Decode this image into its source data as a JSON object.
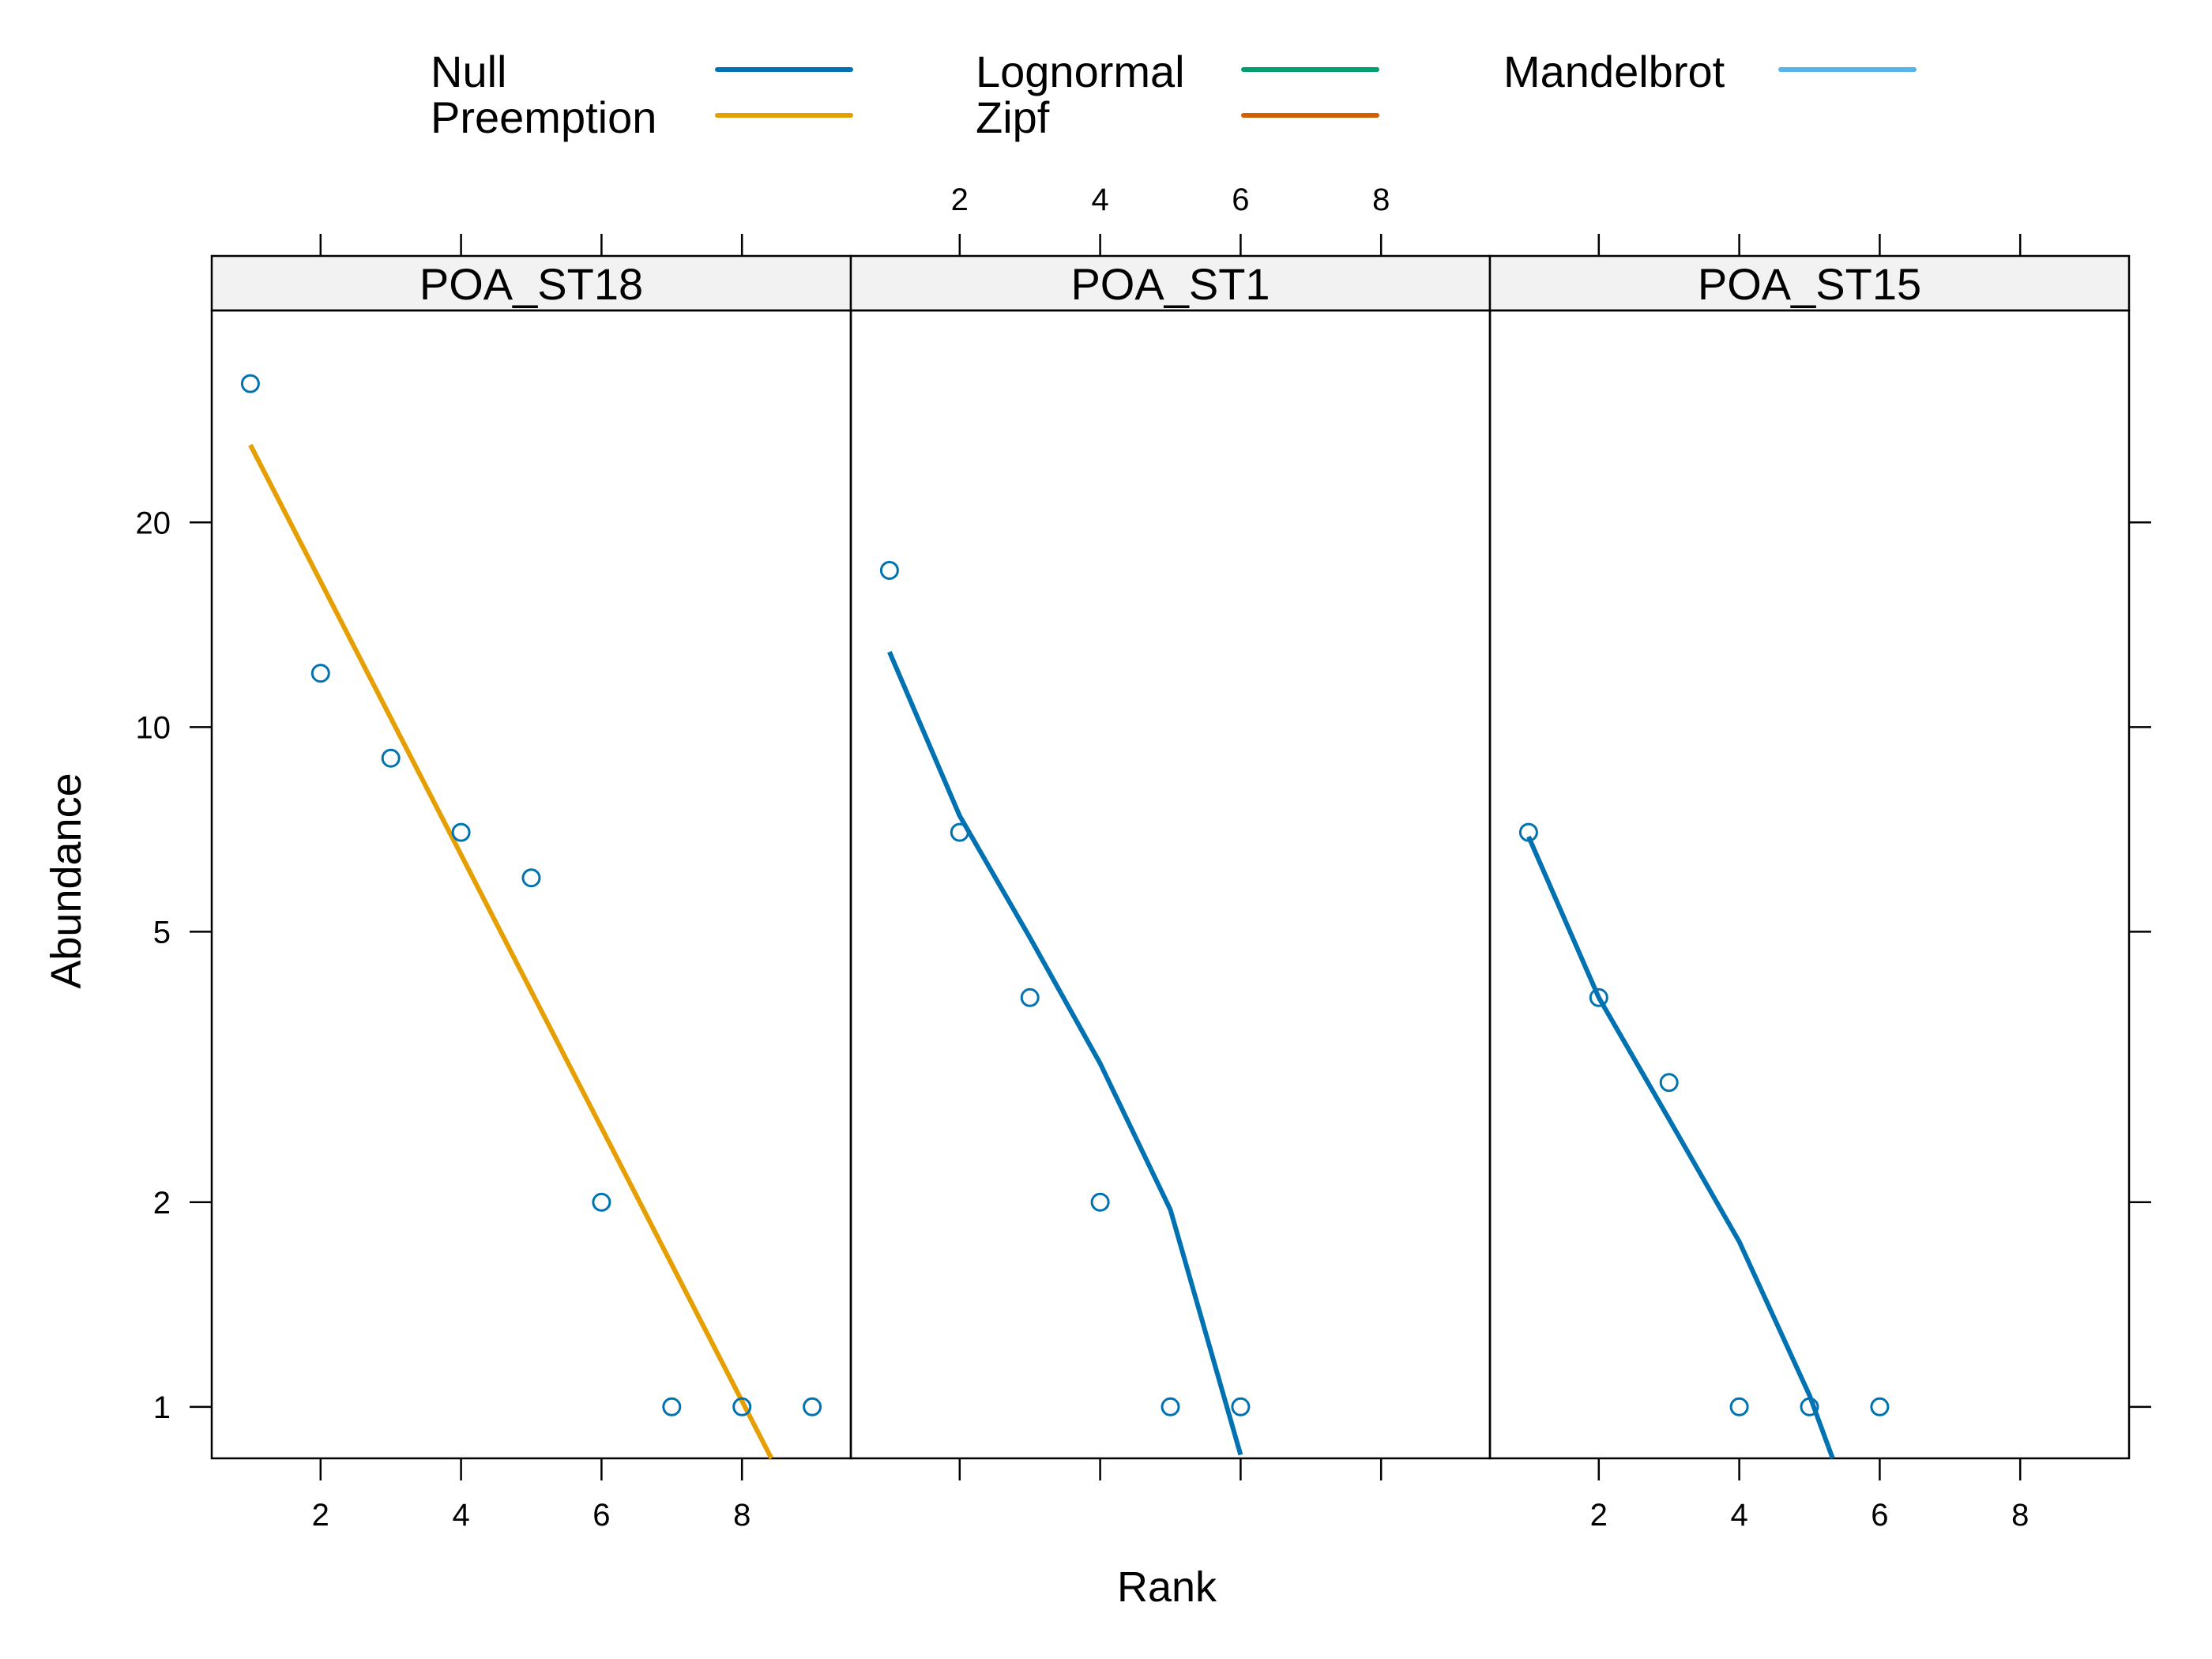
{
  "chart_data": {
    "type": "scatter",
    "xlabel": "Rank",
    "ylabel": "Abundance",
    "x_scale": "linear",
    "y_scale": "log",
    "xlim": [
      0.45,
      9.55
    ],
    "ylim": [
      0.84,
      41
    ],
    "x_ticks": [
      2,
      4,
      6,
      8
    ],
    "y_ticks": [
      1,
      2,
      5,
      10,
      20
    ],
    "grid": false,
    "legend_position": "top",
    "legend": [
      {
        "name": "Null",
        "color": "#0072B2"
      },
      {
        "name": "Preemption",
        "color": "#E69F00"
      },
      {
        "name": "Lognormal",
        "color": "#009E73"
      },
      {
        "name": "Zipf",
        "color": "#D55E00"
      },
      {
        "name": "Mandelbrot",
        "color": "#56B4E9"
      }
    ],
    "panels": [
      {
        "name": "POA_ST18",
        "points": {
          "x": [
            1,
            2,
            3,
            4,
            5,
            6,
            7,
            8,
            9
          ],
          "y": [
            32,
            12,
            9,
            7,
            6,
            2,
            1,
            1,
            1
          ]
        },
        "fit": {
          "model": "Preemption",
          "x": [
            1,
            8.42
          ],
          "y": [
            26,
            0.84
          ]
        }
      },
      {
        "name": "POA_ST1",
        "points": {
          "x": [
            1,
            2,
            3,
            4,
            5,
            6
          ],
          "y": [
            17,
            7,
            4,
            2,
            1,
            1
          ]
        },
        "fit": {
          "model": "Null",
          "x": [
            1,
            2,
            3,
            4,
            5,
            6
          ],
          "y": [
            12.9,
            7.4,
            4.9,
            3.2,
            1.95,
            0.85
          ]
        }
      },
      {
        "name": "POA_ST15",
        "points": {
          "x": [
            1,
            2,
            3,
            4,
            5,
            6
          ],
          "y": [
            7,
            4,
            3,
            1,
            1,
            1
          ]
        },
        "fit": {
          "model": "Null",
          "x": [
            1,
            2,
            3,
            4,
            5,
            5.33
          ],
          "y": [
            6.9,
            4.0,
            2.65,
            1.75,
            1.04,
            0.84
          ]
        }
      }
    ]
  },
  "colors": {
    "points": "#0072B2",
    "strip_bg": "#F2F2F2",
    "axis": "#000000"
  }
}
